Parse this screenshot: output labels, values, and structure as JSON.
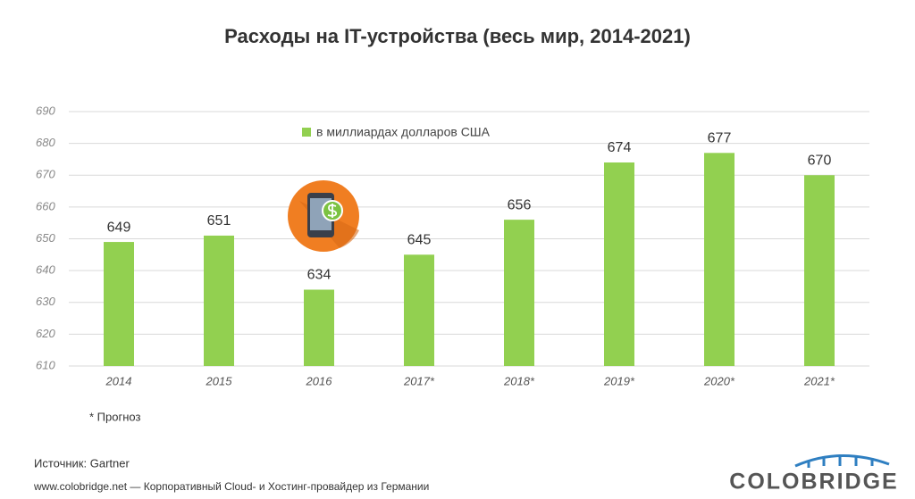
{
  "chart_data": {
    "type": "bar",
    "title": "Расходы на IT-устройства (весь мир, 2014-2021)",
    "categories": [
      "2014",
      "2015",
      "2016",
      "2017*",
      "2018*",
      "2019*",
      "2020*",
      "2021*"
    ],
    "series": [
      {
        "name": "в миллиардах долларов США",
        "color": "#92d050",
        "values": [
          649,
          651,
          634,
          645,
          656,
          674,
          677,
          670
        ]
      }
    ],
    "ylim": [
      610,
      690
    ],
    "yticks": [
      610,
      620,
      630,
      640,
      650,
      660,
      670,
      680,
      690
    ],
    "grid": true,
    "footnote": "* Прогноз",
    "source": "Источник:  Gartner",
    "footer": "www.colobridge.net — Корпоративный Cloud- и Хостинг-провайдер из Германии",
    "logo": "COLOBRIDGE"
  }
}
